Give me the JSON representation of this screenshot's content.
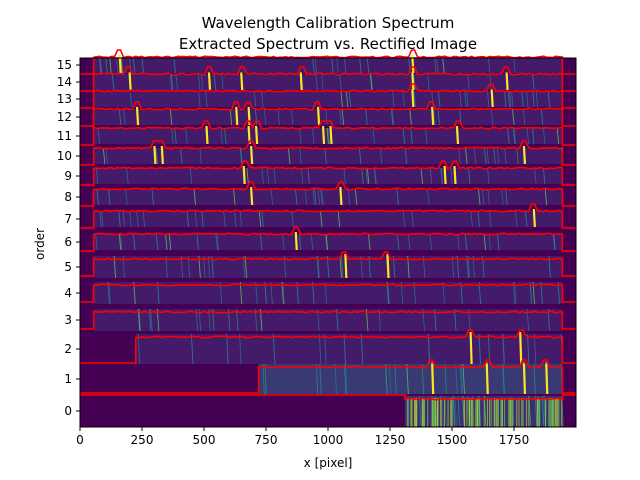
{
  "chart_data": {
    "type": "heatmap",
    "title": "Wavelength Calibration Spectrum",
    "subtitle": "Extracted Spectrum vs. Rectified Image",
    "xlabel": "x [pixel]",
    "ylabel": "order",
    "xlim": [
      0,
      2000
    ],
    "x_ticks": [
      0,
      250,
      500,
      750,
      1000,
      1250,
      1500,
      1750
    ],
    "x_tick_labels": [
      "0",
      "250",
      "500",
      "750",
      "1000",
      "1250",
      "1500",
      "1750"
    ],
    "y_ticks": [
      0,
      1,
      2,
      3,
      4,
      5,
      6,
      7,
      8,
      9,
      10,
      11,
      12,
      13,
      14,
      15
    ],
    "y_tick_labels": [
      "0",
      "1",
      "2",
      "3",
      "4",
      "5",
      "6",
      "7",
      "8",
      "9",
      "10",
      "11",
      "12",
      "13",
      "14",
      "15"
    ],
    "colormap": "viridis",
    "background_color": "#440154",
    "spectrum_color": "#ff0000",
    "grid": false,
    "orders": [
      {
        "order": 0,
        "x_start": 1310,
        "x_end": 1945,
        "peaks": []
      },
      {
        "order": 1,
        "x_start": 720,
        "x_end": 1945,
        "peaks": [
          1420,
          1640,
          1790,
          1880
        ]
      },
      {
        "order": 2,
        "x_start": 225,
        "x_end": 1945,
        "peaks": [
          1575,
          1775
        ]
      },
      {
        "order": 3,
        "x_start": 55,
        "x_end": 1945,
        "peaks": []
      },
      {
        "order": 4,
        "x_start": 55,
        "x_end": 1945,
        "peaks": []
      },
      {
        "order": 5,
        "x_start": 55,
        "x_end": 1945,
        "peaks": [
          1070,
          1240
        ]
      },
      {
        "order": 6,
        "x_start": 55,
        "x_end": 1945,
        "peaks": [
          870
        ]
      },
      {
        "order": 7,
        "x_start": 55,
        "x_end": 1945,
        "peaks": [
          1830
        ]
      },
      {
        "order": 8,
        "x_start": 55,
        "x_end": 1945,
        "peaks": [
          690,
          1050
        ]
      },
      {
        "order": 9,
        "x_start": 55,
        "x_end": 1945,
        "peaks": [
          660,
          1470,
          1510
        ]
      },
      {
        "order": 10,
        "x_start": 55,
        "x_end": 1945,
        "peaks": [
          300,
          330,
          690,
          1790
        ]
      },
      {
        "order": 11,
        "x_start": 55,
        "x_end": 1945,
        "peaks": [
          510,
          680,
          710,
          980,
          1010,
          1520
        ]
      },
      {
        "order": 12,
        "x_start": 55,
        "x_end": 1945,
        "peaks": [
          230,
          630,
          680,
          960,
          1420
        ]
      },
      {
        "order": 13,
        "x_start": 55,
        "x_end": 1945,
        "peaks": [
          1340,
          1660
        ]
      },
      {
        "order": 14,
        "x_start": 55,
        "x_end": 1945,
        "peaks": [
          200,
          520,
          650,
          890,
          1340,
          1720
        ]
      },
      {
        "order": 15,
        "x_start": 55,
        "x_end": 1945,
        "peaks": [
          160,
          1340
        ]
      }
    ]
  }
}
